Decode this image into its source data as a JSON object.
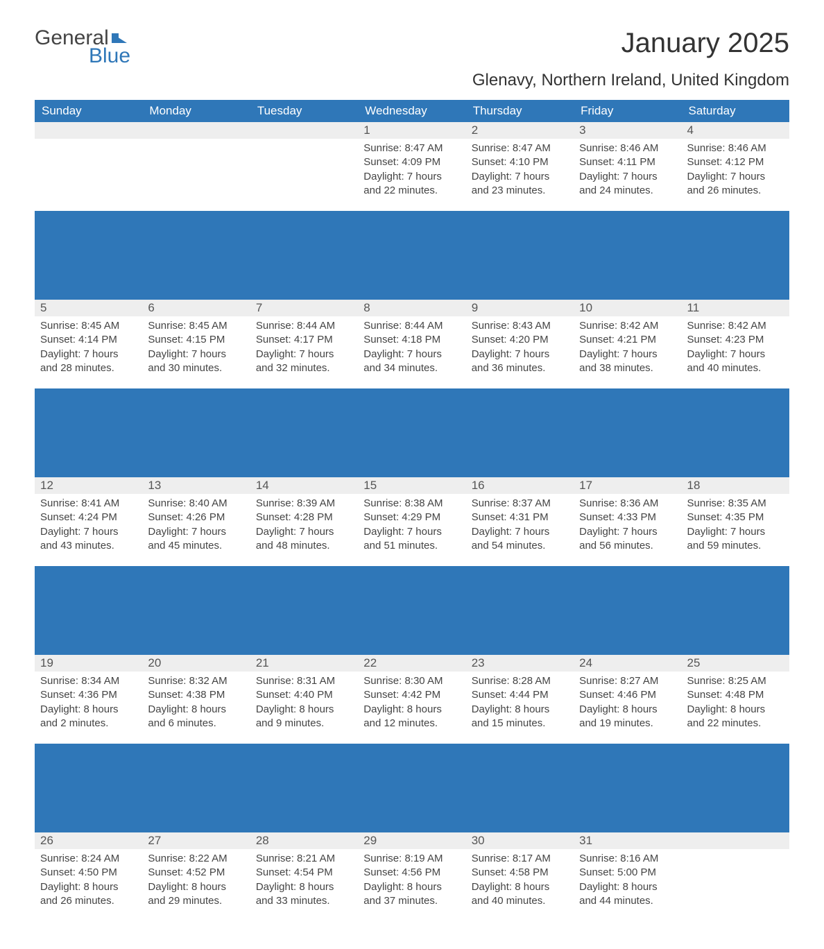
{
  "logo": {
    "text1": "General",
    "text2": "Blue"
  },
  "title": "January 2025",
  "location": "Glenavy, Northern Ireland, United Kingdom",
  "colors": {
    "header_bg": "#2f77b8",
    "header_text": "#ffffff",
    "daynum_bg": "#eeeeee",
    "body_bg": "#ffffff",
    "text": "#333333"
  },
  "calendar": {
    "day_headers": [
      "Sunday",
      "Monday",
      "Tuesday",
      "Wednesday",
      "Thursday",
      "Friday",
      "Saturday"
    ],
    "weeks": [
      [
        null,
        null,
        null,
        {
          "n": "1",
          "sunrise": "8:47 AM",
          "sunset": "4:09 PM",
          "daylight": "7 hours and 22 minutes."
        },
        {
          "n": "2",
          "sunrise": "8:47 AM",
          "sunset": "4:10 PM",
          "daylight": "7 hours and 23 minutes."
        },
        {
          "n": "3",
          "sunrise": "8:46 AM",
          "sunset": "4:11 PM",
          "daylight": "7 hours and 24 minutes."
        },
        {
          "n": "4",
          "sunrise": "8:46 AM",
          "sunset": "4:12 PM",
          "daylight": "7 hours and 26 minutes."
        }
      ],
      [
        {
          "n": "5",
          "sunrise": "8:45 AM",
          "sunset": "4:14 PM",
          "daylight": "7 hours and 28 minutes."
        },
        {
          "n": "6",
          "sunrise": "8:45 AM",
          "sunset": "4:15 PM",
          "daylight": "7 hours and 30 minutes."
        },
        {
          "n": "7",
          "sunrise": "8:44 AM",
          "sunset": "4:17 PM",
          "daylight": "7 hours and 32 minutes."
        },
        {
          "n": "8",
          "sunrise": "8:44 AM",
          "sunset": "4:18 PM",
          "daylight": "7 hours and 34 minutes."
        },
        {
          "n": "9",
          "sunrise": "8:43 AM",
          "sunset": "4:20 PM",
          "daylight": "7 hours and 36 minutes."
        },
        {
          "n": "10",
          "sunrise": "8:42 AM",
          "sunset": "4:21 PM",
          "daylight": "7 hours and 38 minutes."
        },
        {
          "n": "11",
          "sunrise": "8:42 AM",
          "sunset": "4:23 PM",
          "daylight": "7 hours and 40 minutes."
        }
      ],
      [
        {
          "n": "12",
          "sunrise": "8:41 AM",
          "sunset": "4:24 PM",
          "daylight": "7 hours and 43 minutes."
        },
        {
          "n": "13",
          "sunrise": "8:40 AM",
          "sunset": "4:26 PM",
          "daylight": "7 hours and 45 minutes."
        },
        {
          "n": "14",
          "sunrise": "8:39 AM",
          "sunset": "4:28 PM",
          "daylight": "7 hours and 48 minutes."
        },
        {
          "n": "15",
          "sunrise": "8:38 AM",
          "sunset": "4:29 PM",
          "daylight": "7 hours and 51 minutes."
        },
        {
          "n": "16",
          "sunrise": "8:37 AM",
          "sunset": "4:31 PM",
          "daylight": "7 hours and 54 minutes."
        },
        {
          "n": "17",
          "sunrise": "8:36 AM",
          "sunset": "4:33 PM",
          "daylight": "7 hours and 56 minutes."
        },
        {
          "n": "18",
          "sunrise": "8:35 AM",
          "sunset": "4:35 PM",
          "daylight": "7 hours and 59 minutes."
        }
      ],
      [
        {
          "n": "19",
          "sunrise": "8:34 AM",
          "sunset": "4:36 PM",
          "daylight": "8 hours and 2 minutes."
        },
        {
          "n": "20",
          "sunrise": "8:32 AM",
          "sunset": "4:38 PM",
          "daylight": "8 hours and 6 minutes."
        },
        {
          "n": "21",
          "sunrise": "8:31 AM",
          "sunset": "4:40 PM",
          "daylight": "8 hours and 9 minutes."
        },
        {
          "n": "22",
          "sunrise": "8:30 AM",
          "sunset": "4:42 PM",
          "daylight": "8 hours and 12 minutes."
        },
        {
          "n": "23",
          "sunrise": "8:28 AM",
          "sunset": "4:44 PM",
          "daylight": "8 hours and 15 minutes."
        },
        {
          "n": "24",
          "sunrise": "8:27 AM",
          "sunset": "4:46 PM",
          "daylight": "8 hours and 19 minutes."
        },
        {
          "n": "25",
          "sunrise": "8:25 AM",
          "sunset": "4:48 PM",
          "daylight": "8 hours and 22 minutes."
        }
      ],
      [
        {
          "n": "26",
          "sunrise": "8:24 AM",
          "sunset": "4:50 PM",
          "daylight": "8 hours and 26 minutes."
        },
        {
          "n": "27",
          "sunrise": "8:22 AM",
          "sunset": "4:52 PM",
          "daylight": "8 hours and 29 minutes."
        },
        {
          "n": "28",
          "sunrise": "8:21 AM",
          "sunset": "4:54 PM",
          "daylight": "8 hours and 33 minutes."
        },
        {
          "n": "29",
          "sunrise": "8:19 AM",
          "sunset": "4:56 PM",
          "daylight": "8 hours and 37 minutes."
        },
        {
          "n": "30",
          "sunrise": "8:17 AM",
          "sunset": "4:58 PM",
          "daylight": "8 hours and 40 minutes."
        },
        {
          "n": "31",
          "sunrise": "8:16 AM",
          "sunset": "5:00 PM",
          "daylight": "8 hours and 44 minutes."
        },
        null
      ]
    ],
    "labels": {
      "sunrise": "Sunrise: ",
      "sunset": "Sunset: ",
      "daylight": "Daylight: "
    }
  }
}
